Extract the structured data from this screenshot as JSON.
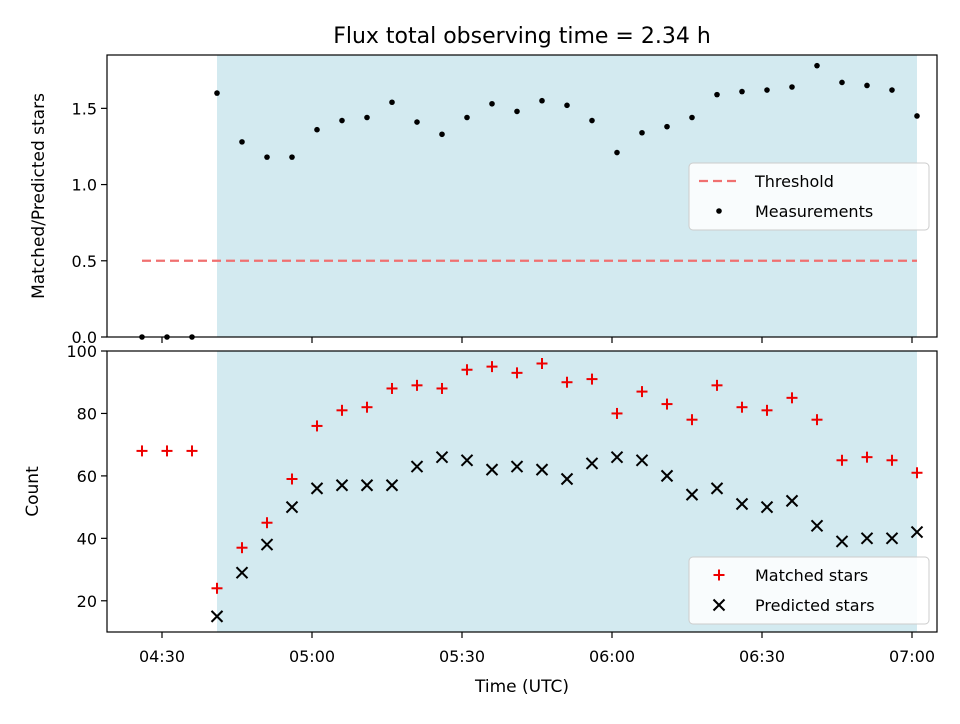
{
  "title": "Flux total observing time = 2.34 h",
  "chart_data": [
    {
      "type": "scatter",
      "panel": "top",
      "ylabel": "Matched/Predicted stars",
      "ylim": [
        0,
        1.85
      ],
      "yticks": [
        0.0,
        0.5,
        1.0,
        1.5
      ],
      "ytick_labels": [
        "0.0",
        "0.5",
        "1.0",
        "1.5"
      ],
      "threshold": {
        "name": "Threshold",
        "value": 0.5,
        "x_start": "04:26",
        "x_end": "07:01",
        "color": "#f07070"
      },
      "series": [
        {
          "name": "Measurements",
          "color": "#000000",
          "x": [
            "04:26",
            "04:31",
            "04:36",
            "04:41",
            "04:46",
            "04:51",
            "04:56",
            "05:01",
            "05:06",
            "05:11",
            "05:16",
            "05:21",
            "05:26",
            "05:31",
            "05:36",
            "05:41",
            "05:46",
            "05:51",
            "05:56",
            "06:01",
            "06:06",
            "06:11",
            "06:16",
            "06:21",
            "06:26",
            "06:31",
            "06:36",
            "06:41",
            "06:46",
            "06:51",
            "06:56",
            "07:01"
          ],
          "values": [
            0.0,
            0.0,
            0.0,
            1.6,
            1.28,
            1.18,
            1.18,
            1.36,
            1.42,
            1.44,
            1.54,
            1.41,
            1.33,
            1.44,
            1.53,
            1.48,
            1.55,
            1.52,
            1.42,
            1.21,
            1.34,
            1.38,
            1.44,
            1.59,
            1.61,
            1.62,
            1.64,
            1.78,
            1.67,
            1.65,
            1.62,
            1.45
          ]
        }
      ],
      "legend": {
        "position": "center-right"
      }
    },
    {
      "type": "scatter",
      "panel": "bottom",
      "xlabel": "Time (UTC)",
      "ylabel": "Count",
      "ylim": [
        10,
        100
      ],
      "yticks": [
        20,
        40,
        60,
        80,
        100
      ],
      "ytick_labels": [
        "20",
        "40",
        "60",
        "80",
        "100"
      ],
      "series": [
        {
          "name": "Matched stars",
          "marker": "plus",
          "color": "#ee0000",
          "x": [
            "04:26",
            "04:31",
            "04:36",
            "04:41",
            "04:46",
            "04:51",
            "04:56",
            "05:01",
            "05:06",
            "05:11",
            "05:16",
            "05:21",
            "05:26",
            "05:31",
            "05:36",
            "05:41",
            "05:46",
            "05:51",
            "05:56",
            "06:01",
            "06:06",
            "06:11",
            "06:16",
            "06:21",
            "06:26",
            "06:31",
            "06:36",
            "06:41",
            "06:46",
            "06:51",
            "06:56",
            "07:01"
          ],
          "values": [
            68,
            68,
            68,
            24,
            37,
            45,
            59,
            76,
            81,
            82,
            88,
            89,
            88,
            94,
            95,
            93,
            96,
            90,
            91,
            80,
            87,
            83,
            78,
            89,
            82,
            81,
            85,
            78,
            65,
            66,
            65,
            61
          ]
        },
        {
          "name": "Predicted stars",
          "marker": "x",
          "color": "#000000",
          "x": [
            "04:41",
            "04:46",
            "04:51",
            "04:56",
            "05:01",
            "05:06",
            "05:11",
            "05:16",
            "05:21",
            "05:26",
            "05:31",
            "05:36",
            "05:41",
            "05:46",
            "05:51",
            "05:56",
            "06:01",
            "06:06",
            "06:11",
            "06:16",
            "06:21",
            "06:26",
            "06:31",
            "06:36",
            "06:41",
            "06:46",
            "06:51",
            "06:56",
            "07:01"
          ],
          "values": [
            15,
            29,
            38,
            50,
            56,
            57,
            57,
            57,
            63,
            66,
            65,
            62,
            63,
            62,
            59,
            64,
            66,
            65,
            60,
            54,
            56,
            51,
            50,
            52,
            44,
            39,
            40,
            40,
            42
          ]
        }
      ],
      "legend": {
        "position": "lower-right"
      }
    }
  ],
  "x_axis": {
    "range": [
      "04:19",
      "07:05"
    ],
    "ticks": [
      "04:30",
      "05:00",
      "05:30",
      "06:00",
      "06:30",
      "07:00"
    ],
    "tick_labels": [
      "04:30",
      "05:00",
      "05:30",
      "06:00",
      "06:30",
      "07:00"
    ]
  },
  "observing_window": {
    "start": "04:41",
    "end": "07:01",
    "color": "#d3eaf0"
  }
}
